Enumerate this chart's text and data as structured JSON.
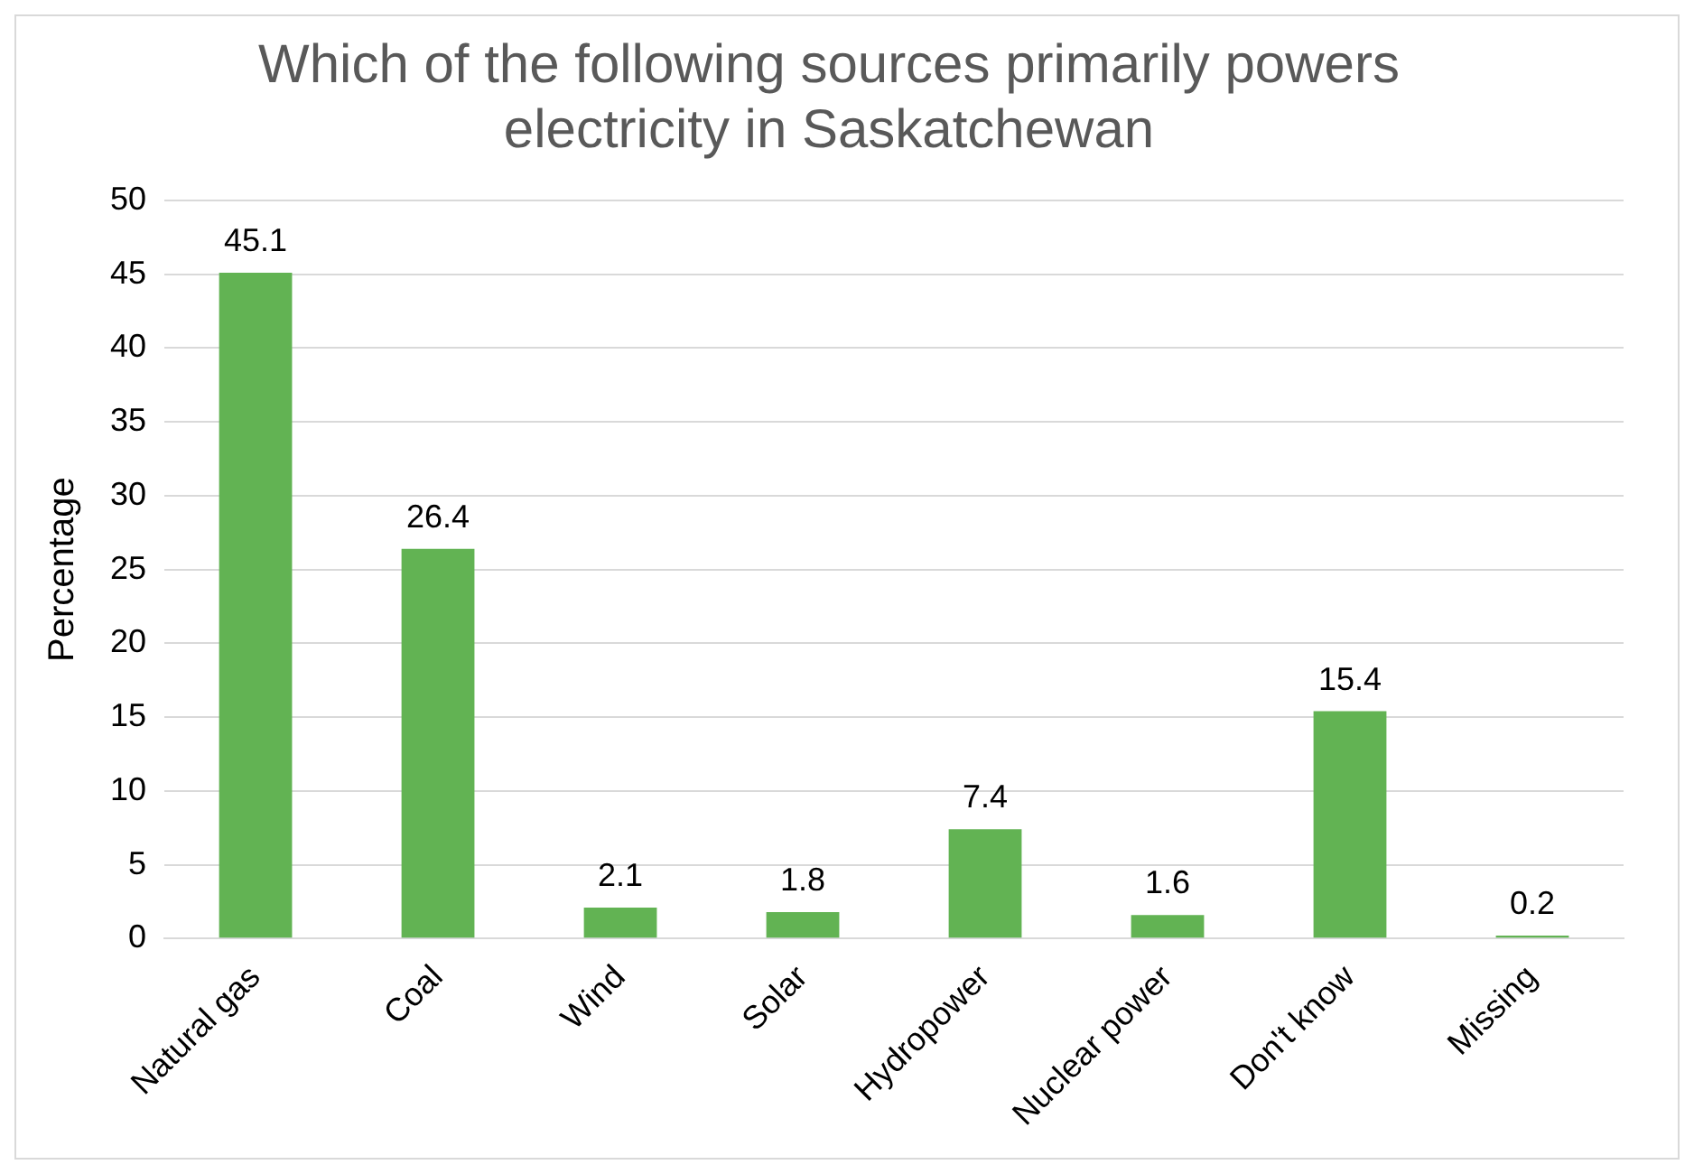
{
  "chart_data": {
    "type": "bar",
    "title": "Which of the following sources primarily powers electricity in Saskatchewan",
    "ylabel": "Percentage",
    "categories": [
      "Natural gas",
      "Coal",
      "Wind",
      "Solar",
      "Hydropower",
      "Nuclear power",
      "Don't know",
      "Missing"
    ],
    "values": [
      45.1,
      26.4,
      2.1,
      1.8,
      7.4,
      1.6,
      15.4,
      0.2
    ],
    "color": "#62b353",
    "ylim": [
      0,
      50
    ],
    "yticks": [
      0,
      5,
      10,
      15,
      20,
      25,
      30,
      35,
      40,
      45,
      50
    ],
    "grid": "y",
    "data_labels": true,
    "legend": false
  }
}
